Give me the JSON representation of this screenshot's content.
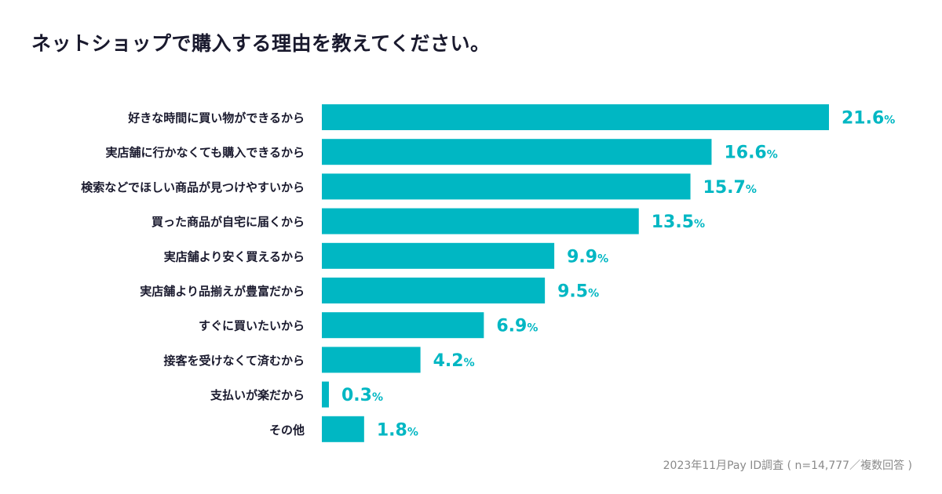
{
  "title": "ネットショップで購入する理由を教えてください。",
  "footnote": "2023年11月Pay ID調査 ( n=14,777／複数回答 )",
  "colors": {
    "bar": "#00b7c3",
    "value": "#00b7c3",
    "label": "#1a1a2e",
    "title": "#1a1a2e"
  },
  "chart_data": {
    "type": "bar",
    "orientation": "horizontal",
    "categories": [
      "好きな時間に買い物ができるから",
      "実店舗に行かなくても購入できるから",
      "検索などでほしい商品が見つけやすいから",
      "買った商品が自宅に届くから",
      "実店舗より安く買えるから",
      "実店舗より品揃えが豊富だから",
      "すぐに買いたいから",
      "接客を受けなくて済むから",
      "支払いが楽だから",
      "その他"
    ],
    "values": [
      21.6,
      16.6,
      15.7,
      13.5,
      9.9,
      9.5,
      6.9,
      4.2,
      0.3,
      1.8
    ],
    "value_labels": [
      "21.6",
      "16.6",
      "15.7",
      "13.5",
      "9.9",
      "9.5",
      "6.9",
      "4.2",
      "0.3",
      "1.8"
    ],
    "unit": "%",
    "xlim": [
      0,
      21.6
    ],
    "grid": false,
    "legend": "none"
  }
}
